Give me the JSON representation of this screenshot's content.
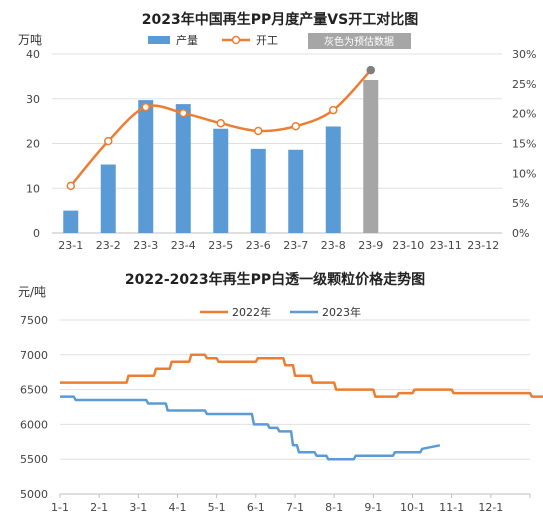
{
  "chart_data": [
    {
      "type": "bar",
      "title": "2023年中国再生PP月度产量VS开工对比图",
      "ylabel_left": "万吨",
      "categories": [
        "23-1",
        "23-2",
        "23-3",
        "23-4",
        "23-5",
        "23-6",
        "23-7",
        "23-8",
        "23-9",
        "23-10",
        "23-11",
        "23-12"
      ],
      "ylim_left": [
        0,
        40
      ],
      "ylim_right": [
        0,
        30
      ],
      "left_ticks": [
        "0",
        "10",
        "20",
        "30",
        "40"
      ],
      "right_ticks": [
        "0%",
        "5%",
        "10%",
        "15%",
        "20%",
        "25%",
        "30%"
      ],
      "series": [
        {
          "name": "产量",
          "kind": "bar",
          "color": "#5b9bd5",
          "forecast_color": "#a6a6a6",
          "values": [
            5,
            15.3,
            29.7,
            28.8,
            23.3,
            18.8,
            18.6,
            23.8,
            34.2,
            null,
            null,
            null
          ],
          "forecast_index": 8
        },
        {
          "name": "开工",
          "kind": "line",
          "axis": "right",
          "color": "#ed7d31",
          "values": [
            7.9,
            15.4,
            21.1,
            20.1,
            18.4,
            17.1,
            17.9,
            20.6,
            27.3,
            null,
            null,
            null
          ]
        }
      ],
      "legend_note": "灰色为预估数据",
      "grid": true
    },
    {
      "type": "line",
      "title": "2022-2023年再生PP白透一级颗粒价格走势图",
      "ylabel": "元/吨",
      "ylim": [
        5000,
        7500
      ],
      "y_ticks": [
        "5000",
        "5500",
        "6000",
        "6500",
        "7000",
        "7500"
      ],
      "x_ticks": [
        "1-1",
        "2-1",
        "3-1",
        "4-1",
        "5-1",
        "6-1",
        "7-1",
        "8-1",
        "9-1",
        "10-1",
        "11-1",
        "12-1"
      ],
      "series": [
        {
          "name": "2022年",
          "color": "#ed7d31",
          "x": [
            0,
            1,
            1.05,
            1.7,
            1.75,
            2.0,
            2.05,
            2.4,
            2.45,
            2.8,
            2.85,
            3.3,
            3.35,
            3.7,
            3.75,
            4.0,
            4.05,
            5.0,
            5.05,
            5.7,
            5.75,
            5.95,
            6.0,
            6.4,
            6.45,
            7.0,
            7.05,
            8.0,
            8.05,
            8.6,
            8.65,
            9.0,
            9.05,
            10.0,
            10.05,
            12.0,
            12.05,
            12.9
          ],
          "values": [
            6600,
            6600,
            6600,
            6600,
            6700,
            6700,
            6700,
            6700,
            6800,
            6800,
            6900,
            6900,
            7000,
            7000,
            6950,
            6950,
            6900,
            6900,
            6950,
            6950,
            6850,
            6850,
            6700,
            6700,
            6600,
            6600,
            6500,
            6500,
            6400,
            6400,
            6450,
            6450,
            6500,
            6500,
            6450,
            6450,
            6400,
            6400
          ]
        },
        {
          "name": "2023年",
          "color": "#5b9bd5",
          "x": [
            0,
            0.35,
            0.4,
            1.0,
            1.05,
            2.2,
            2.25,
            2.7,
            2.75,
            3.7,
            3.75,
            4.9,
            4.95,
            5.3,
            5.35,
            5.55,
            5.6,
            5.9,
            5.95,
            6.05,
            6.1,
            6.5,
            6.55,
            6.8,
            6.85,
            7.5,
            7.55,
            8.5,
            8.55,
            9.2,
            9.25,
            9.7
          ],
          "values": [
            6400,
            6400,
            6350,
            6350,
            6350,
            6350,
            6300,
            6300,
            6200,
            6200,
            6150,
            6150,
            6000,
            6000,
            5950,
            5950,
            5900,
            5900,
            5700,
            5700,
            5600,
            5600,
            5550,
            5550,
            5500,
            5500,
            5550,
            5550,
            5600,
            5600,
            5650,
            5700
          ]
        }
      ],
      "grid": true
    }
  ]
}
